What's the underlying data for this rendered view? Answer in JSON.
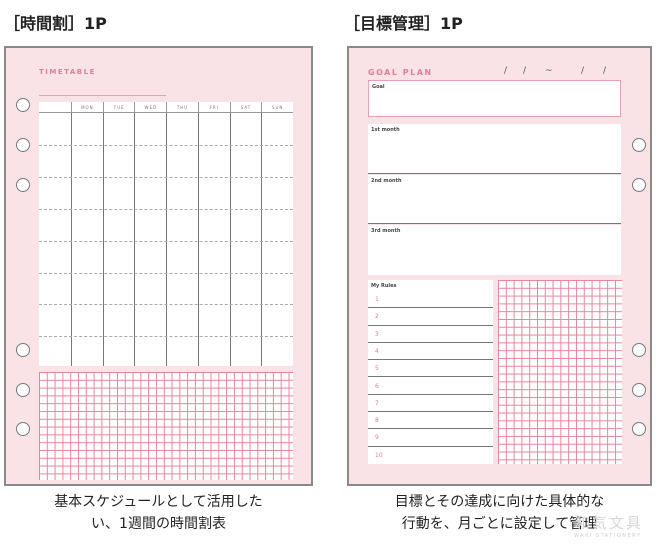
{
  "left": {
    "heading": "［時間割］1P",
    "title": "TIMETABLE",
    "days": [
      "MON",
      "TUE",
      "WED",
      "THU",
      "FRI",
      "SAT",
      "SUN"
    ],
    "caption_lines": [
      "基本スケジュールとして活用した",
      "い、1週間の時間割表"
    ]
  },
  "right": {
    "heading": "［目標管理］1P",
    "title": "GOAL PLAN",
    "date_marks": [
      "/",
      "/",
      "~",
      "/",
      "/"
    ],
    "boxes": [
      "Goal",
      "1st month",
      "2nd month",
      "3rd month"
    ],
    "rules_label": "My Rules",
    "rules": [
      "1",
      "2",
      "3",
      "4",
      "5",
      "6",
      "7",
      "8",
      "9",
      "10"
    ],
    "caption_lines": [
      "目標とその達成に向けた具体的な",
      "行動を、月ごとに設定して管理"
    ]
  },
  "watermark": {
    "text": "和気文具",
    "sub": "WAKI STATIONERY"
  },
  "colors": {
    "paper": "#fae3e6",
    "accent": "#e0809a",
    "grid": "#e8839e"
  }
}
